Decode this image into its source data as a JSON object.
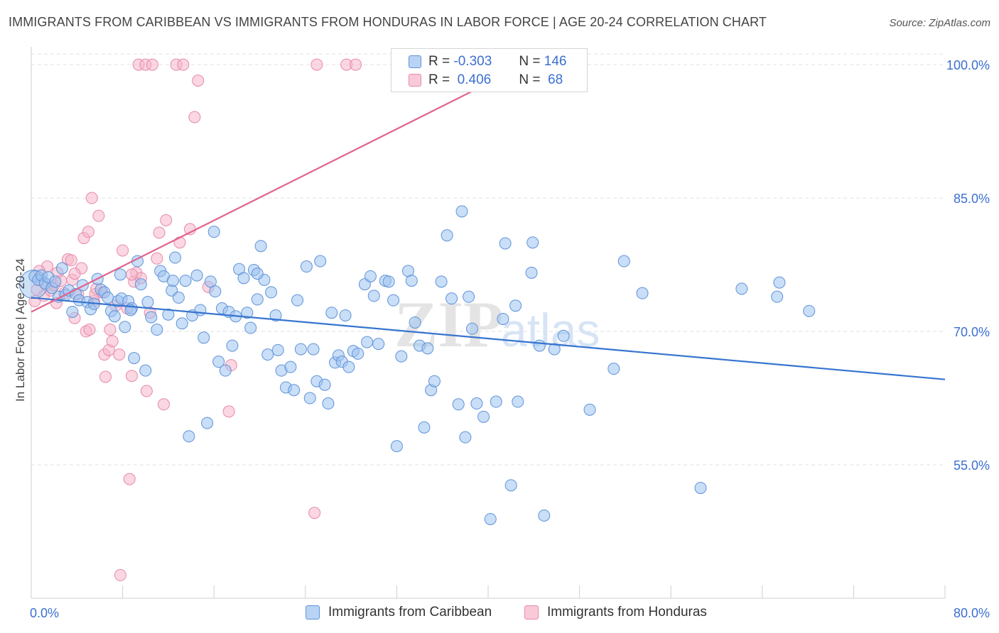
{
  "title": "IMMIGRANTS FROM CARIBBEAN VS IMMIGRANTS FROM HONDURAS IN LABOR FORCE | AGE 20-24 CORRELATION CHART",
  "source": "Source: ZipAtlas.com",
  "watermark": {
    "zip": "ZIP",
    "atlas": "atlas"
  },
  "colors": {
    "caribbean_fill": "#9dc3f0",
    "caribbean_stroke": "#5f93d8",
    "caribbean_line": "#3674d0",
    "honduras_fill": "#f6b6cb",
    "honduras_stroke": "#e68aa8",
    "honduras_line": "#e0648f",
    "tick_label": "#3b6fd0",
    "grid": "#e2e2e2"
  },
  "stats_legend": {
    "rows": [
      {
        "r_label": "R =",
        "r_value": "-0.303",
        "n_label": "N =",
        "n_value": "146"
      },
      {
        "r_label": "R =",
        "r_value": " 0.406",
        "n_label": "N =",
        "n_value": " 68"
      }
    ]
  },
  "chart_data": {
    "type": "scatter",
    "title": "IMMIGRANTS FROM CARIBBEAN VS IMMIGRANTS FROM HONDURAS IN LABOR FORCE | AGE 20-24 CORRELATION CHART",
    "xlabel": "",
    "ylabel": "In Labor Force | Age 20-24",
    "xlim": [
      0,
      80
    ],
    "ylim": [
      40,
      102
    ],
    "x_tick_labels": [
      "0.0%",
      "80.0%"
    ],
    "y_ticks": [
      55,
      70,
      85,
      100
    ],
    "y_tick_labels": [
      "55.0%",
      "70.0%",
      "85.0%",
      "100.0%"
    ],
    "grid": true,
    "legend_position": "bottom",
    "series": [
      {
        "name": "Immigrants from Caribbean",
        "trend": {
          "x": [
            0,
            80
          ],
          "y": [
            73.8,
            64.6
          ]
        },
        "points": [
          [
            0.3,
            76.2
          ],
          [
            0.6,
            75.8
          ],
          [
            0.9,
            76.3
          ],
          [
            1.2,
            75.4
          ],
          [
            1.5,
            76.1
          ],
          [
            1.8,
            74.9
          ],
          [
            2.1,
            75.6
          ],
          [
            2.4,
            73.9
          ],
          [
            2.7,
            77.1
          ],
          [
            3.0,
            74.1
          ],
          [
            3.3,
            74.6
          ],
          [
            3.6,
            72.2
          ],
          [
            3.9,
            74.2
          ],
          [
            4.2,
            73.5
          ],
          [
            4.5,
            75.2
          ],
          [
            4.9,
            73.3
          ],
          [
            5.2,
            72.5
          ],
          [
            5.5,
            73.1
          ],
          [
            5.8,
            75.9
          ],
          [
            6.1,
            74.7
          ],
          [
            6.4,
            74.4
          ],
          [
            6.7,
            73.8
          ],
          [
            7.0,
            72.3
          ],
          [
            7.3,
            71.7
          ],
          [
            7.6,
            73.4
          ],
          [
            7.9,
            73.7
          ],
          [
            8.2,
            70.5
          ],
          [
            8.5,
            73.4
          ],
          [
            8.8,
            72.6
          ],
          [
            9.0,
            67.0
          ],
          [
            9.3,
            77.9
          ],
          [
            9.6,
            75.3
          ],
          [
            10.0,
            65.6
          ],
          [
            10.2,
            73.3
          ],
          [
            10.5,
            71.6
          ],
          [
            11.0,
            70.2
          ],
          [
            11.3,
            76.8
          ],
          [
            11.6,
            76.2
          ],
          [
            12.0,
            71.9
          ],
          [
            12.3,
            74.6
          ],
          [
            12.6,
            78.3
          ],
          [
            12.9,
            73.8
          ],
          [
            13.2,
            70.9
          ],
          [
            13.5,
            75.7
          ],
          [
            13.8,
            58.2
          ],
          [
            14.1,
            71.8
          ],
          [
            14.5,
            76.3
          ],
          [
            14.8,
            72.4
          ],
          [
            15.1,
            69.3
          ],
          [
            15.4,
            59.7
          ],
          [
            15.7,
            75.6
          ],
          [
            16.0,
            81.2
          ],
          [
            16.4,
            66.6
          ],
          [
            16.7,
            72.6
          ],
          [
            17.0,
            65.6
          ],
          [
            17.3,
            72.2
          ],
          [
            17.6,
            68.4
          ],
          [
            17.9,
            71.7
          ],
          [
            18.2,
            77.0
          ],
          [
            18.6,
            76.0
          ],
          [
            18.9,
            72.1
          ],
          [
            19.2,
            70.4
          ],
          [
            19.5,
            76.9
          ],
          [
            19.8,
            73.6
          ],
          [
            20.1,
            79.6
          ],
          [
            20.4,
            75.8
          ],
          [
            20.7,
            67.4
          ],
          [
            21.0,
            74.4
          ],
          [
            21.4,
            71.8
          ],
          [
            21.6,
            67.9
          ],
          [
            21.9,
            65.6
          ],
          [
            22.3,
            63.7
          ],
          [
            22.7,
            66.0
          ],
          [
            23.0,
            63.4
          ],
          [
            23.3,
            73.5
          ],
          [
            23.6,
            68.0
          ],
          [
            24.1,
            77.3
          ],
          [
            24.4,
            62.5
          ],
          [
            24.7,
            68.0
          ],
          [
            25.0,
            64.4
          ],
          [
            25.3,
            77.9
          ],
          [
            25.7,
            64.0
          ],
          [
            26.0,
            61.9
          ],
          [
            26.3,
            72.1
          ],
          [
            26.6,
            66.5
          ],
          [
            26.9,
            67.3
          ],
          [
            27.2,
            66.6
          ],
          [
            27.5,
            71.8
          ],
          [
            27.8,
            66.0
          ],
          [
            28.2,
            67.8
          ],
          [
            28.6,
            67.5
          ],
          [
            29.2,
            75.3
          ],
          [
            29.4,
            68.8
          ],
          [
            29.7,
            76.2
          ],
          [
            30.0,
            74.0
          ],
          [
            30.4,
            68.6
          ],
          [
            31.0,
            75.7
          ],
          [
            31.3,
            75.6
          ],
          [
            31.7,
            73.5
          ],
          [
            32.0,
            57.1
          ],
          [
            32.4,
            67.2
          ],
          [
            33.0,
            76.8
          ],
          [
            33.3,
            75.7
          ],
          [
            33.6,
            71.0
          ],
          [
            34.0,
            68.4
          ],
          [
            34.4,
            59.2
          ],
          [
            34.7,
            68.1
          ],
          [
            35.0,
            63.4
          ],
          [
            35.3,
            64.4
          ],
          [
            35.9,
            75.6
          ],
          [
            36.4,
            80.8
          ],
          [
            36.8,
            73.7
          ],
          [
            37.4,
            61.8
          ],
          [
            37.7,
            83.5
          ],
          [
            38.0,
            58.1
          ],
          [
            38.3,
            73.9
          ],
          [
            38.6,
            70.3
          ],
          [
            39.0,
            61.9
          ],
          [
            39.6,
            60.4
          ],
          [
            40.7,
            62.1
          ],
          [
            41.3,
            71.4
          ],
          [
            41.5,
            79.9
          ],
          [
            42.0,
            52.7
          ],
          [
            42.4,
            72.9
          ],
          [
            42.6,
            62.1
          ],
          [
            43.8,
            76.6
          ],
          [
            43.9,
            80.0
          ],
          [
            44.5,
            68.4
          ],
          [
            44.9,
            49.3
          ],
          [
            45.8,
            68.0
          ],
          [
            46.6,
            69.5
          ],
          [
            40.2,
            48.9
          ],
          [
            48.9,
            61.2
          ],
          [
            51.0,
            65.8
          ],
          [
            51.9,
            77.9
          ],
          [
            53.5,
            74.3
          ],
          [
            58.6,
            52.4
          ],
          [
            62.2,
            74.8
          ],
          [
            65.3,
            73.9
          ],
          [
            65.5,
            75.5
          ],
          [
            68.1,
            72.3
          ],
          [
            7.8,
            76.4
          ],
          [
            12.4,
            75.7
          ],
          [
            16.1,
            74.5
          ],
          [
            8.7,
            72.4
          ],
          [
            19.8,
            76.5
          ]
        ]
      },
      {
        "name": "Immigrants from Honduras",
        "trend": {
          "x": [
            0,
            45.6
          ],
          "y": [
            72.2,
            101.5
          ]
        },
        "points": [
          [
            0.3,
            73.4
          ],
          [
            0.5,
            74.7
          ],
          [
            0.8,
            75.8
          ],
          [
            1.1,
            74.0
          ],
          [
            1.4,
            75.2
          ],
          [
            1.7,
            74.6
          ],
          [
            2.0,
            75.2
          ],
          [
            2.3,
            76.6
          ],
          [
            2.6,
            75.7
          ],
          [
            2.9,
            74.3
          ],
          [
            3.2,
            78.1
          ],
          [
            3.5,
            78.0
          ],
          [
            3.6,
            75.8
          ],
          [
            3.8,
            71.5
          ],
          [
            4.1,
            74.2
          ],
          [
            4.4,
            77.1
          ],
          [
            4.6,
            80.5
          ],
          [
            4.8,
            70.0
          ],
          [
            5.0,
            81.2
          ],
          [
            5.1,
            70.2
          ],
          [
            5.3,
            85.0
          ],
          [
            5.5,
            73.4
          ],
          [
            5.6,
            74.2
          ],
          [
            5.9,
            83.0
          ],
          [
            6.2,
            74.4
          ],
          [
            6.4,
            67.4
          ],
          [
            6.5,
            64.9
          ],
          [
            6.8,
            67.9
          ],
          [
            7.1,
            68.9
          ],
          [
            7.4,
            72.9
          ],
          [
            7.7,
            67.4
          ],
          [
            7.8,
            42.6
          ],
          [
            8.0,
            79.1
          ],
          [
            8.4,
            72.6
          ],
          [
            8.6,
            53.4
          ],
          [
            8.8,
            65.0
          ],
          [
            9.0,
            75.6
          ],
          [
            9.2,
            76.6
          ],
          [
            9.4,
            100.0
          ],
          [
            10.0,
            100.0
          ],
          [
            10.1,
            63.3
          ],
          [
            10.4,
            72.1
          ],
          [
            10.6,
            100.0
          ],
          [
            11.0,
            78.2
          ],
          [
            11.2,
            81.1
          ],
          [
            11.6,
            61.8
          ],
          [
            11.8,
            82.5
          ],
          [
            12.7,
            100.0
          ],
          [
            13.0,
            80.0
          ],
          [
            13.3,
            100.0
          ],
          [
            13.9,
            81.5
          ],
          [
            14.3,
            94.1
          ],
          [
            14.6,
            98.2
          ],
          [
            15.5,
            75.0
          ],
          [
            17.3,
            61.0
          ],
          [
            17.5,
            66.2
          ],
          [
            24.8,
            49.6
          ],
          [
            25.0,
            100.0
          ],
          [
            27.6,
            100.0
          ],
          [
            28.4,
            100.0
          ],
          [
            1.4,
            77.3
          ],
          [
            2.2,
            73.2
          ],
          [
            3.8,
            76.5
          ],
          [
            0.7,
            76.8
          ],
          [
            5.7,
            74.8
          ],
          [
            6.9,
            70.2
          ],
          [
            9.6,
            76.0
          ],
          [
            8.8,
            76.4
          ]
        ]
      }
    ]
  },
  "bottom_legend": [
    {
      "label": "Immigrants from Caribbean"
    },
    {
      "label": "Immigrants from Honduras"
    }
  ]
}
